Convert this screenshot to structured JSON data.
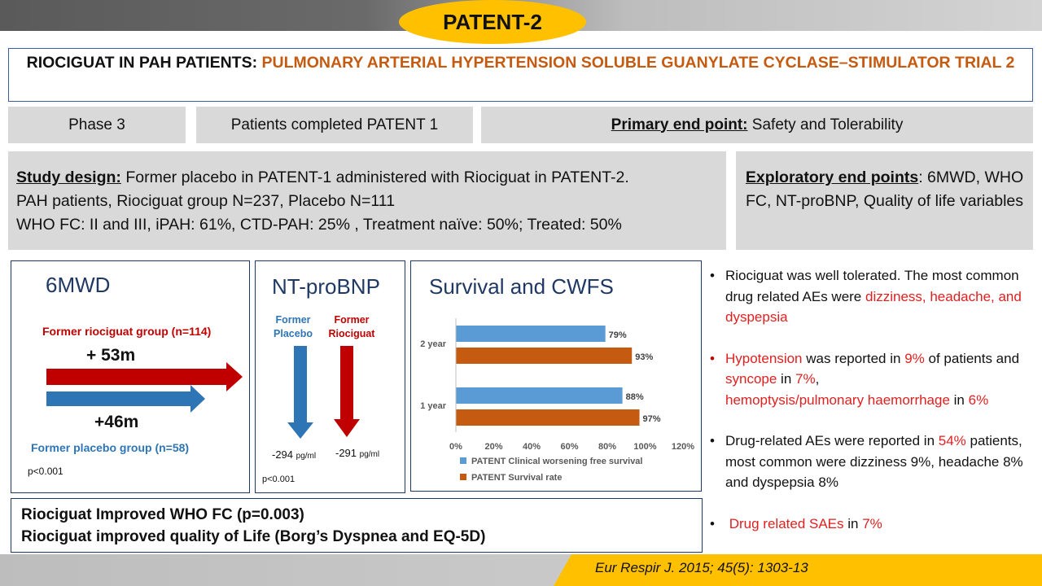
{
  "badge": "PATENT-2",
  "title": {
    "black": "RIOCIGUAT IN PAH PATIENTS: ",
    "orange": "PULMONARY ARTERIAL HYPERTENSION SOLUBLE GUANYLATE CYCLASE–STIMULATOR TRIAL 2"
  },
  "info": {
    "phase": "Phase 3",
    "patients": "Patients completed PATENT 1",
    "primary_label": "Primary end point:",
    "primary_value": " Safety and Tolerability"
  },
  "study": {
    "label": "Study design:",
    "line1": " Former placebo in PATENT-1 administered with Riociguat in PATENT-2.",
    "line2": "PAH patients, Riociguat group N=237, Placebo N=111",
    "line3": "WHO FC: II and III, iPAH: 61%, CTD-PAH: 25% , Treatment naïve: 50%; Treated: 50%"
  },
  "exploratory": {
    "label": "Exploratory end points",
    "value": ": 6MWD, WHO FC, NT-proBNP, Quality of life variables"
  },
  "sixmwd": {
    "title": "6MWD",
    "group1_label": "Former riociguat group (n=114)",
    "group1_value": "+ 53m",
    "group2_value": "+46m",
    "group2_label": "Former placebo group (n=58)",
    "pvalue": "p<0.001",
    "colors": {
      "riociguat": "#c00000",
      "placebo": "#2e75b6"
    }
  },
  "ntprobnp": {
    "title": "NT-proBNP",
    "placebo_label_1": "Former",
    "placebo_label_2": "Placebo",
    "rio_label_1": "Former",
    "rio_label_2": "Riociguat",
    "placebo_value": "-294",
    "rio_value": "-291",
    "unit": "pg/ml",
    "pvalue": "p<0.001"
  },
  "survival_title": "Survival and CWFS",
  "chart_data": {
    "type": "bar",
    "orientation": "horizontal",
    "categories": [
      "2 year",
      "1 year"
    ],
    "series": [
      {
        "name": "PATENT Clinical worsening free survival",
        "values": [
          79,
          88
        ],
        "labels": [
          "79%",
          "88%"
        ],
        "color": "#5b9bd5"
      },
      {
        "name": "PATENT Survival rate",
        "values": [
          93,
          97
        ],
        "labels": [
          "93%",
          "97%"
        ],
        "color": "#c55a11"
      }
    ],
    "xlim": [
      0,
      120
    ],
    "ticks": [
      "0%",
      "20%",
      "40%",
      "60%",
      "80%",
      "100%",
      "120%"
    ],
    "grid": false,
    "legend": "bottom"
  },
  "conclusion": {
    "line1": "Riociguat Improved WHO FC (p=0.003)",
    "line2": "Riociguat improved quality of Life (Borg’s Dyspnea and EQ-5D)"
  },
  "bullets": {
    "b1_a": "Riociguat was well tolerated. The most common drug related AEs were ",
    "b1_red": "dizziness, headache, and dyspepsia",
    "b2_r1": "Hypotension",
    "b2_t1": " was reported  in ",
    "b2_r2": "9%",
    "b2_t2": " of patients and ",
    "b2_r3": "syncope",
    "b2_t3": " in ",
    "b2_r4": "7%",
    "b2_t4": ",",
    "b2_r5": "hemoptysis/pulmonary haemorrhage",
    "b2_t5": "  in ",
    "b2_r6": "6%",
    "b3_a": "Drug-related  AEs were reported  in ",
    "b3_red": "54%",
    "b3_b": " patients, most common were dizziness 9%, headache 8% and dyspepsia 8%",
    "b4_red1": "Drug related SAEs",
    "b4_t": " in ",
    "b4_red2": "7%"
  },
  "citation": "Eur Respir J. 2015; 45(5): 1303-13"
}
